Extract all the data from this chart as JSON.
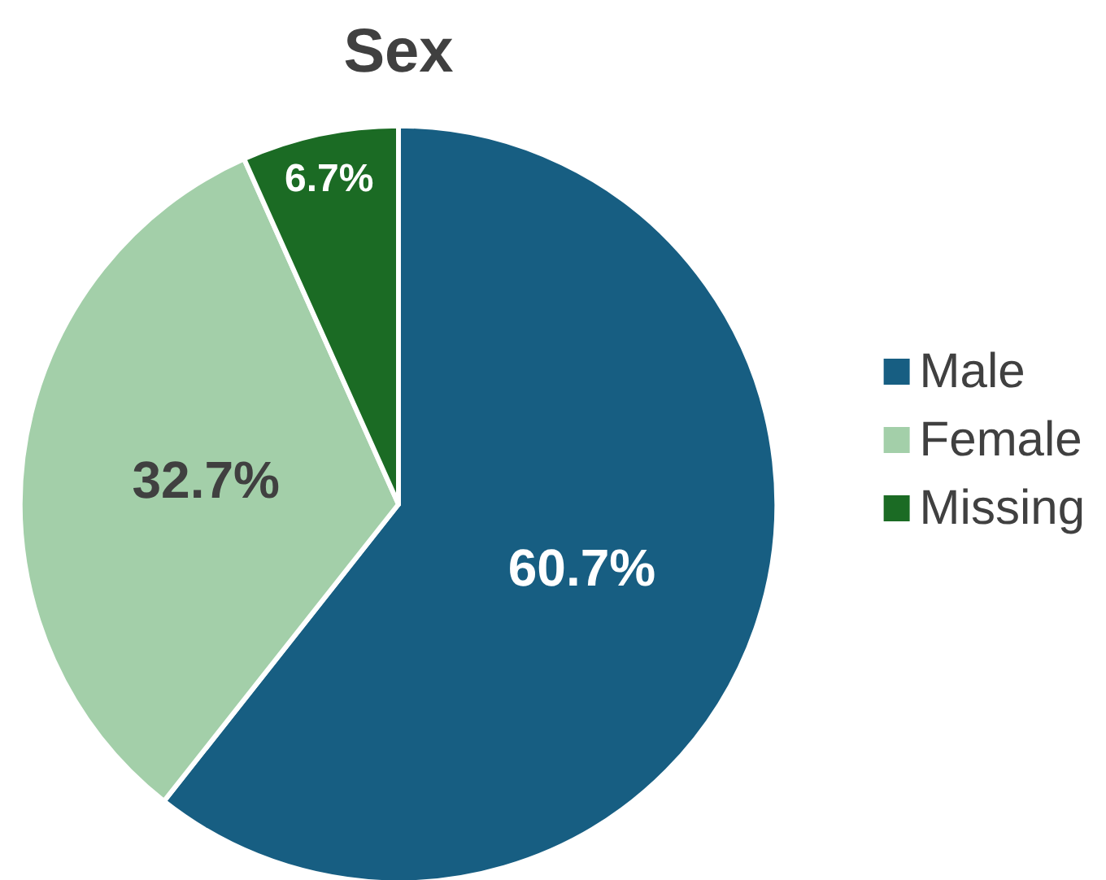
{
  "chart_data": {
    "type": "pie",
    "title": "Sex",
    "categories": [
      "Male",
      "Female",
      "Missing"
    ],
    "values": [
      60.7,
      32.7,
      6.7
    ],
    "colors": [
      "#175e82",
      "#a3cfa9",
      "#1b6b24"
    ],
    "value_labels": [
      "60.7%",
      "32.7%",
      "6.7%"
    ],
    "legend": "right"
  }
}
